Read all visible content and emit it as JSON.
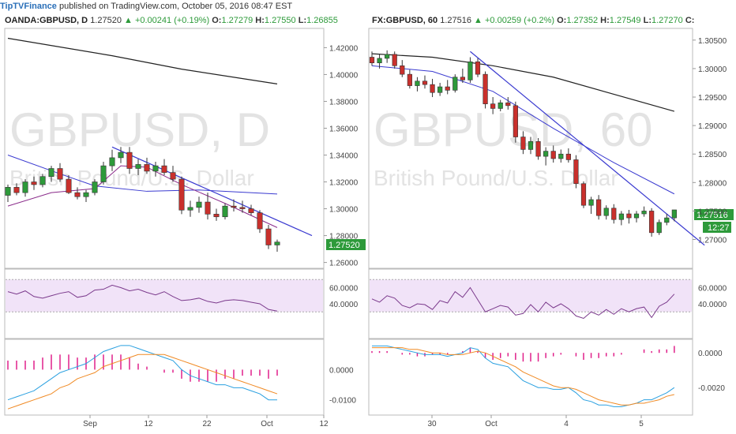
{
  "header": {
    "brand": "TipTVFinance",
    "text": " published on TradingView.com, October 05, 2016 08:47 EST"
  },
  "colors": {
    "up": "#2d9a3a",
    "down": "#c9302c",
    "rsi_bg": "#f1e3f8",
    "rsi": "#7b3a8c",
    "ma_long": "#222222",
    "ma_mid": "#3a3ad0",
    "macd": "#2aa0e0",
    "signal": "#f08a24",
    "hist": "#e0208a",
    "trend": "#3a3ad0"
  },
  "left": {
    "info": {
      "symbol": "OANDA:GBPUSD, D",
      "price": "1.27520",
      "change": "▲ +0.00241 (+0.19%)",
      "o_label": "O:",
      "o": "1.27279",
      "h_label": "H:",
      "h": "1.27550",
      "l_label": "L:",
      "l": "1.26855"
    },
    "watermark": "GBPUSD, D",
    "watermark_sub": "British Pound/U.S. Dollar",
    "price_ticks": [
      "1.42000",
      "1.40000",
      "1.38000",
      "1.36000",
      "1.34000",
      "1.32000",
      "1.30000",
      "1.28000",
      "1.26000"
    ],
    "price_range": [
      1.258,
      1.432
    ],
    "last_price": "1.27520",
    "rsi_ticks": [
      "60.0000",
      "40.0000"
    ],
    "macd_ticks": [
      "0.0000",
      "-0.0100"
    ],
    "x_labels": [
      "Sep",
      "12",
      "22",
      "Oct",
      "12"
    ],
    "chart_data": {
      "type": "candlestick",
      "candles": [
        [
          1.31,
          1.318,
          1.305,
          1.316
        ],
        [
          1.316,
          1.319,
          1.31,
          1.312
        ],
        [
          1.312,
          1.322,
          1.309,
          1.32
        ],
        [
          1.32,
          1.324,
          1.314,
          1.318
        ],
        [
          1.318,
          1.326,
          1.316,
          1.324
        ],
        [
          1.324,
          1.332,
          1.32,
          1.33
        ],
        [
          1.33,
          1.334,
          1.32,
          1.322
        ],
        [
          1.322,
          1.325,
          1.311,
          1.312
        ],
        [
          1.312,
          1.316,
          1.307,
          1.309
        ],
        [
          1.309,
          1.314,
          1.305,
          1.312
        ],
        [
          1.312,
          1.322,
          1.31,
          1.32
        ],
        [
          1.32,
          1.335,
          1.318,
          1.332
        ],
        [
          1.332,
          1.344,
          1.328,
          1.338
        ],
        [
          1.338,
          1.346,
          1.334,
          1.342
        ],
        [
          1.342,
          1.346,
          1.326,
          1.33
        ],
        [
          1.33,
          1.337,
          1.325,
          1.333
        ],
        [
          1.333,
          1.338,
          1.326,
          1.328
        ],
        [
          1.328,
          1.335,
          1.324,
          1.332
        ],
        [
          1.332,
          1.337,
          1.325,
          1.327
        ],
        [
          1.327,
          1.332,
          1.32,
          1.322
        ],
        [
          1.322,
          1.324,
          1.296,
          1.299
        ],
        [
          1.299,
          1.306,
          1.294,
          1.301
        ],
        [
          1.301,
          1.309,
          1.297,
          1.305
        ],
        [
          1.305,
          1.312,
          1.292,
          1.296
        ],
        [
          1.296,
          1.3,
          1.291,
          1.294
        ],
        [
          1.294,
          1.304,
          1.292,
          1.302
        ],
        [
          1.302,
          1.307,
          1.298,
          1.301
        ],
        [
          1.301,
          1.306,
          1.297,
          1.3
        ],
        [
          1.3,
          1.303,
          1.295,
          1.297
        ],
        [
          1.297,
          1.299,
          1.282,
          1.285
        ],
        [
          1.285,
          1.288,
          1.27,
          1.273
        ],
        [
          1.273,
          1.277,
          1.268,
          1.2752
        ]
      ],
      "ma_long": [
        [
          0,
          1.427
        ],
        [
          12,
          1.414
        ],
        [
          20,
          1.404
        ],
        [
          31,
          1.393
        ]
      ],
      "ma_mid": [
        [
          0,
          1.34
        ],
        [
          6,
          1.326
        ],
        [
          10,
          1.317
        ],
        [
          16,
          1.313
        ],
        [
          22,
          1.314
        ],
        [
          31,
          1.311
        ]
      ],
      "ma_short": [
        [
          0,
          1.302
        ],
        [
          5,
          1.312
        ],
        [
          10,
          1.315
        ],
        [
          13,
          1.332
        ],
        [
          16,
          1.331
        ],
        [
          20,
          1.318
        ],
        [
          25,
          1.304
        ],
        [
          31,
          1.286
        ]
      ],
      "trendline": [
        [
          12,
          1.346
        ],
        [
          35,
          1.28
        ]
      ],
      "rsi": [
        55,
        52,
        56,
        49,
        47,
        50,
        53,
        55,
        48,
        50,
        57,
        58,
        63,
        60,
        56,
        58,
        54,
        51,
        55,
        49,
        44,
        45,
        47,
        43,
        41,
        44,
        45,
        44,
        42,
        40,
        33,
        31
      ],
      "macd": [
        -0.01,
        -0.009,
        -0.008,
        -0.007,
        -0.005,
        -0.003,
        -0.001,
        0.0,
        0.001,
        0.002,
        0.004,
        0.006,
        0.007,
        0.008,
        0.008,
        0.007,
        0.006,
        0.005,
        0.004,
        0.003,
        0.0,
        -0.002,
        -0.003,
        -0.004,
        -0.005,
        -0.005,
        -0.006,
        -0.006,
        -0.007,
        -0.008,
        -0.01,
        -0.01
      ],
      "signal": [
        -0.013,
        -0.012,
        -0.011,
        -0.01,
        -0.009,
        -0.008,
        -0.006,
        -0.005,
        -0.003,
        -0.002,
        -0.001,
        0.001,
        0.002,
        0.003,
        0.004,
        0.005,
        0.005,
        0.005,
        0.005,
        0.004,
        0.003,
        0.002,
        0.001,
        0.0,
        -0.001,
        -0.002,
        -0.003,
        -0.004,
        -0.005,
        -0.006,
        -0.007,
        -0.008
      ],
      "hist": [
        0.003,
        0.003,
        0.003,
        0.003,
        0.004,
        0.005,
        0.005,
        0.005,
        0.004,
        0.004,
        0.005,
        0.005,
        0.005,
        0.005,
        0.004,
        0.002,
        0.001,
        0.0,
        -0.001,
        -0.001,
        -0.003,
        -0.004,
        -0.004,
        -0.004,
        -0.004,
        -0.003,
        -0.003,
        -0.002,
        -0.002,
        -0.002,
        -0.003,
        -0.002
      ]
    }
  },
  "right": {
    "info": {
      "symbol": "FX:GBPUSD, 60",
      "price": "1.27516",
      "change": "▲ +0.00259 (+0.2%)",
      "o_label": "O:",
      "o": "1.27352",
      "h_label": "H:",
      "h": "1.27549",
      "l_label": "L:",
      "l": "1.27270",
      "c_label": "C:"
    },
    "watermark": "GBPUSD, 60",
    "watermark_sub": "British Pound/U.S. Dollar",
    "price_ticks": [
      "1.30500",
      "1.30000",
      "1.29500",
      "1.29000",
      "1.28500",
      "1.28000",
      "1.27500",
      "1.27000"
    ],
    "price_range": [
      1.2655,
      1.3065
    ],
    "last_price": "1.27516",
    "countdown": "12:27",
    "rsi_ticks": [
      "60.0000",
      "40.0000"
    ],
    "macd_ticks": [
      "0.0000",
      "-0.0020"
    ],
    "x_labels": [
      "30",
      "Oct",
      "4",
      "5"
    ],
    "chart_data": {
      "type": "candlestick",
      "candles": [
        [
          1.302,
          1.303,
          1.3005,
          1.301
        ],
        [
          1.301,
          1.3025,
          1.3,
          1.3018
        ],
        [
          1.3018,
          1.3032,
          1.301,
          1.3025
        ],
        [
          1.3025,
          1.303,
          1.3,
          1.3005
        ],
        [
          1.3005,
          1.3015,
          1.2985,
          1.299
        ],
        [
          1.299,
          1.2998,
          1.2965,
          1.297
        ],
        [
          1.297,
          1.2985,
          1.296,
          1.2978
        ],
        [
          1.2978,
          1.2988,
          1.2965,
          1.2972
        ],
        [
          1.2972,
          1.2982,
          1.295,
          1.2958
        ],
        [
          1.2958,
          1.2975,
          1.2952,
          1.2968
        ],
        [
          1.2968,
          1.298,
          1.2955,
          1.2962
        ],
        [
          1.2962,
          1.299,
          1.2958,
          1.2985
        ],
        [
          1.2985,
          1.3,
          1.2975,
          1.298
        ],
        [
          1.298,
          1.302,
          1.2975,
          1.3012
        ],
        [
          1.3012,
          1.3018,
          1.2985,
          1.299
        ],
        [
          1.299,
          1.2995,
          1.293,
          1.2938
        ],
        [
          1.2938,
          1.295,
          1.292,
          1.293
        ],
        [
          1.293,
          1.2945,
          1.2925,
          1.294
        ],
        [
          1.294,
          1.295,
          1.2928,
          1.2935
        ],
        [
          1.2935,
          1.2942,
          1.287,
          1.288
        ],
        [
          1.288,
          1.289,
          1.285,
          1.2858
        ],
        [
          1.2858,
          1.288,
          1.285,
          1.2872
        ],
        [
          1.2872,
          1.2878,
          1.284,
          1.2846
        ],
        [
          1.2846,
          1.2862,
          1.283,
          1.2855
        ],
        [
          1.2855,
          1.2865,
          1.2835,
          1.2842
        ],
        [
          1.2842,
          1.2858,
          1.2835,
          1.285
        ],
        [
          1.285,
          1.286,
          1.2835,
          1.284
        ],
        [
          1.284,
          1.2848,
          1.279,
          1.2798
        ],
        [
          1.2798,
          1.2802,
          1.2755,
          1.276
        ],
        [
          1.276,
          1.2775,
          1.2745,
          1.277
        ],
        [
          1.277,
          1.2778,
          1.2735,
          1.2742
        ],
        [
          1.2742,
          1.276,
          1.2735,
          1.2755
        ],
        [
          1.2755,
          1.2762,
          1.2728,
          1.2735
        ],
        [
          1.2735,
          1.275,
          1.2725,
          1.2745
        ],
        [
          1.2745,
          1.2752,
          1.2728,
          1.2738
        ],
        [
          1.2738,
          1.275,
          1.273,
          1.2745
        ],
        [
          1.2745,
          1.2758,
          1.274,
          1.275
        ],
        [
          1.275,
          1.2755,
          1.2705,
          1.2712
        ],
        [
          1.2712,
          1.2735,
          1.2708,
          1.273
        ],
        [
          1.273,
          1.2745,
          1.2725,
          1.2738
        ],
        [
          1.2738,
          1.2752,
          1.2732,
          1.2752
        ]
      ],
      "ma_long": [
        [
          0,
          1.3026
        ],
        [
          8,
          1.302
        ],
        [
          16,
          1.3005
        ],
        [
          24,
          1.2985
        ],
        [
          32,
          1.2955
        ],
        [
          40,
          1.2925
        ]
      ],
      "ma_mid": [
        [
          0,
          1.3005
        ],
        [
          8,
          1.2995
        ],
        [
          16,
          1.296
        ],
        [
          24,
          1.2895
        ],
        [
          32,
          1.2835
        ],
        [
          40,
          1.278
        ]
      ],
      "trendline": [
        [
          13,
          1.303
        ],
        [
          44,
          1.269
        ]
      ],
      "rsi": [
        46,
        42,
        50,
        47,
        38,
        35,
        40,
        39,
        33,
        44,
        41,
        55,
        48,
        60,
        45,
        30,
        34,
        38,
        36,
        26,
        28,
        39,
        30,
        42,
        35,
        40,
        34,
        25,
        22,
        30,
        26,
        33,
        27,
        34,
        30,
        34,
        36,
        23,
        37,
        42,
        52
      ],
      "macd": [
        0.0004,
        0.0004,
        0.0004,
        0.0003,
        0.0002,
        0.0001,
        0.0,
        -0.0001,
        -0.0001,
        -0.0001,
        -0.0002,
        -0.0001,
        0.0,
        0.0003,
        0.0002,
        -0.0003,
        -0.0006,
        -0.0007,
        -0.0008,
        -0.0012,
        -0.0016,
        -0.0018,
        -0.002,
        -0.002,
        -0.0021,
        -0.0021,
        -0.002,
        -0.0023,
        -0.0027,
        -0.0028,
        -0.003,
        -0.003,
        -0.0031,
        -0.0031,
        -0.003,
        -0.0029,
        -0.0027,
        -0.0027,
        -0.0025,
        -0.0023,
        -0.002
      ],
      "signal": [
        0.0003,
        0.0003,
        0.0003,
        0.0003,
        0.0003,
        0.0002,
        0.0002,
        0.0001,
        0.0,
        0.0,
        -0.0001,
        -0.0001,
        -0.0001,
        0.0,
        0.0001,
        0.0,
        -0.0002,
        -0.0004,
        -0.0006,
        -0.0008,
        -0.0011,
        -0.0013,
        -0.0015,
        -0.0017,
        -0.0019,
        -0.002,
        -0.002,
        -0.0021,
        -0.0023,
        -0.0025,
        -0.0027,
        -0.0028,
        -0.0029,
        -0.003,
        -0.003,
        -0.0029,
        -0.0029,
        -0.0028,
        -0.0027,
        -0.0025,
        -0.0024
      ],
      "hist": [
        0.0001,
        0.0001,
        0.0001,
        0.0,
        -0.0001,
        -0.0001,
        -0.0002,
        -0.0002,
        -0.0001,
        -0.0001,
        -0.0001,
        0.0,
        0.0001,
        0.0003,
        0.0001,
        -0.0003,
        -0.0004,
        -0.0003,
        -0.0002,
        -0.0004,
        -0.0005,
        -0.0005,
        -0.0005,
        -0.0003,
        -0.0002,
        -0.0001,
        0.0,
        -0.0002,
        -0.0004,
        -0.0003,
        -0.0003,
        -0.0002,
        -0.0002,
        -0.0001,
        0.0,
        0.0,
        0.0002,
        0.0001,
        0.0002,
        0.0002,
        0.0004
      ]
    }
  }
}
